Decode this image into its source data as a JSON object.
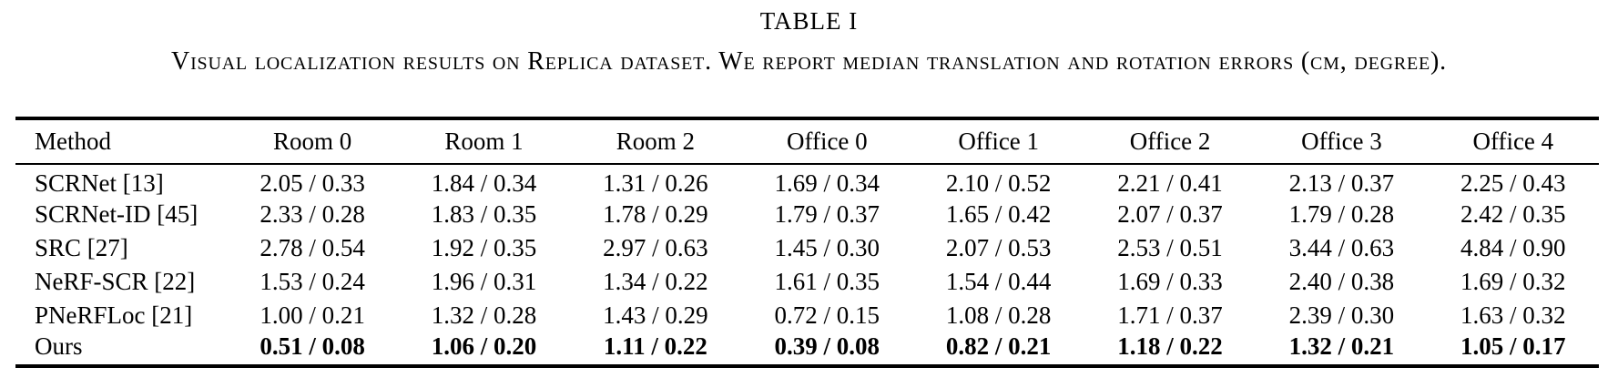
{
  "title": "TABLE I",
  "caption": "Visual localization results on Replica dataset. We report median translation and rotation errors (cm, degree).",
  "colors": {
    "background": "#ffffff",
    "text": "#000000",
    "rule": "#000000"
  },
  "table": {
    "columns": [
      "Method",
      "Room 0",
      "Room 1",
      "Room 2",
      "Office 0",
      "Office 1",
      "Office 2",
      "Office 3",
      "Office 4"
    ],
    "rows": [
      {
        "method": "SCRNet [13]",
        "bold": false,
        "values": [
          "2.05 / 0.33",
          "1.84 / 0.34",
          "1.31 / 0.26",
          "1.69 / 0.34",
          "2.10 / 0.52",
          "2.21 / 0.41",
          "2.13 / 0.37",
          "2.25 / 0.43"
        ]
      },
      {
        "method": "SCRNet-ID [45]",
        "bold": false,
        "values": [
          "2.33 / 0.28",
          "1.83 / 0.35",
          "1.78 / 0.29",
          "1.79 / 0.37",
          "1.65 / 0.42",
          "2.07 / 0.37",
          "1.79 / 0.28",
          "2.42 / 0.35"
        ]
      },
      {
        "method": "SRC [27]",
        "bold": false,
        "values": [
          "2.78 / 0.54",
          "1.92 / 0.35",
          "2.97 / 0.63",
          "1.45 / 0.30",
          "2.07 / 0.53",
          "2.53 / 0.51",
          "3.44 / 0.63",
          "4.84 / 0.90"
        ]
      },
      {
        "method": "NeRF-SCR [22]",
        "bold": false,
        "values": [
          "1.53 / 0.24",
          "1.96 / 0.31",
          "1.34 / 0.22",
          "1.61 / 0.35",
          "1.54 / 0.44",
          "1.69 / 0.33",
          "2.40 / 0.38",
          "1.69 / 0.32"
        ]
      },
      {
        "method": "PNeRFLoc [21]",
        "bold": false,
        "values": [
          "1.00 / 0.21",
          "1.32 / 0.28",
          "1.43 / 0.29",
          "0.72 / 0.15",
          "1.08 / 0.28",
          "1.71 / 0.37",
          "2.39 / 0.30",
          "1.63 / 0.32"
        ]
      },
      {
        "method": "Ours",
        "bold": true,
        "values": [
          "0.51 / 0.08",
          "1.06 / 0.20",
          "1.11 / 0.22",
          "0.39 / 0.08",
          "0.82 / 0.21",
          "1.18 / 0.22",
          "1.32 / 0.21",
          "1.05 / 0.17"
        ]
      }
    ]
  }
}
